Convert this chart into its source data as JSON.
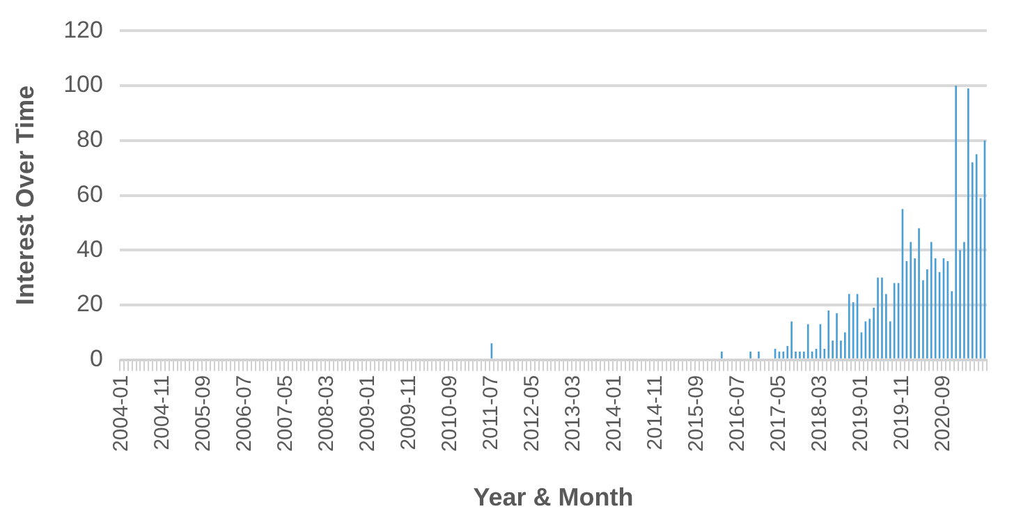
{
  "chart_data": {
    "type": "bar",
    "xlabel": "Year & Month",
    "ylabel": "Interest Over Time",
    "categories": [
      "2004-01",
      null,
      null,
      null,
      null,
      null,
      null,
      null,
      null,
      null,
      "2004-11",
      null,
      null,
      null,
      null,
      null,
      null,
      null,
      null,
      null,
      "2005-09",
      null,
      null,
      null,
      null,
      null,
      null,
      null,
      null,
      null,
      "2006-07",
      null,
      null,
      null,
      null,
      null,
      null,
      null,
      null,
      null,
      "2007-05",
      null,
      null,
      null,
      null,
      null,
      null,
      null,
      null,
      null,
      "2008-03",
      null,
      null,
      null,
      null,
      null,
      null,
      null,
      null,
      null,
      "2009-01",
      null,
      null,
      null,
      null,
      null,
      null,
      null,
      null,
      null,
      "2009-11",
      null,
      null,
      null,
      null,
      null,
      null,
      null,
      null,
      null,
      "2010-09",
      null,
      null,
      null,
      null,
      null,
      null,
      null,
      null,
      null,
      "2011-07",
      null,
      null,
      null,
      null,
      null,
      null,
      null,
      null,
      null,
      "2012-05",
      null,
      null,
      null,
      null,
      null,
      null,
      null,
      null,
      null,
      "2013-03",
      null,
      null,
      null,
      null,
      null,
      null,
      null,
      null,
      null,
      "2014-01",
      null,
      null,
      null,
      null,
      null,
      null,
      null,
      null,
      null,
      "2014-11",
      null,
      null,
      null,
      null,
      null,
      null,
      null,
      null,
      null,
      "2015-09",
      null,
      null,
      null,
      null,
      null,
      null,
      null,
      null,
      null,
      "2016-07",
      null,
      null,
      null,
      null,
      null,
      null,
      null,
      null,
      null,
      "2017-05",
      null,
      null,
      null,
      null,
      null,
      null,
      null,
      null,
      null,
      "2018-03",
      null,
      null,
      null,
      null,
      null,
      null,
      null,
      null,
      null,
      "2019-01",
      null,
      null,
      null,
      null,
      null,
      null,
      null,
      null,
      null,
      "2019-11",
      null,
      null,
      null,
      null,
      null,
      null,
      null,
      null,
      null,
      "2020-09",
      null,
      null,
      null,
      null,
      null,
      null,
      null,
      null,
      null,
      null
    ],
    "values": [
      0,
      0,
      0,
      0,
      0,
      0,
      0,
      0,
      0,
      0,
      0,
      0,
      0,
      0,
      0,
      0,
      0,
      0,
      0,
      0,
      0,
      0,
      0,
      0,
      0,
      0,
      0,
      0,
      0,
      0,
      0,
      0,
      0,
      0,
      0,
      0,
      0,
      0,
      0,
      0,
      0,
      0,
      0,
      0,
      0,
      0,
      0,
      0,
      0,
      0,
      0,
      0,
      0,
      0,
      0,
      0,
      0,
      0,
      0,
      0,
      0,
      0,
      0,
      0,
      0,
      0,
      0,
      0,
      0,
      0,
      0,
      0,
      0,
      0,
      0,
      0,
      0,
      0,
      0,
      0,
      0,
      0,
      0,
      0,
      0,
      0,
      0,
      0,
      0,
      0,
      6,
      0,
      0,
      0,
      0,
      0,
      0,
      0,
      0,
      0,
      0,
      0,
      0,
      0,
      0,
      0,
      0,
      0,
      0,
      0,
      0,
      0,
      0,
      0,
      0,
      0,
      0,
      0,
      0,
      0,
      0,
      0,
      0,
      0,
      0,
      0,
      0,
      0,
      0,
      0,
      0,
      0,
      0,
      0,
      0,
      0,
      0,
      0,
      0,
      0,
      0,
      0,
      0,
      0,
      0,
      0,
      3,
      0,
      0,
      0,
      0,
      0,
      0,
      3,
      0,
      3,
      0,
      0,
      0,
      4,
      3,
      3,
      5,
      14,
      3,
      3,
      3,
      13,
      3,
      4,
      13,
      4,
      18,
      7,
      17,
      7,
      10,
      24,
      21,
      24,
      10,
      14,
      15,
      19,
      30,
      30,
      24,
      14,
      28,
      28,
      55,
      36,
      43,
      37,
      48,
      29,
      33,
      43,
      37,
      32,
      37,
      36,
      25,
      100,
      40,
      43,
      99,
      72,
      75,
      59,
      80
    ],
    "color": "#4a9fd6",
    "ylim": [
      0,
      120
    ],
    "yticks": [
      0,
      20,
      40,
      60,
      80,
      100,
      120
    ],
    "grid": "y"
  }
}
